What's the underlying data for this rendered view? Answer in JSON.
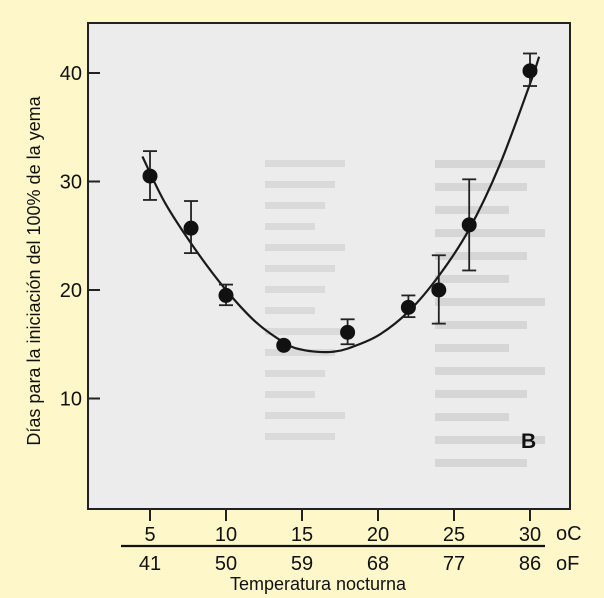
{
  "chart_data": {
    "type": "scatter",
    "title": "",
    "panel_label": "B",
    "ylabel": "Días para la iniciación del 100% de la yema",
    "xlabel": "Temperatura nocturna",
    "x_unit_c": "oC",
    "x_unit_f": "oF",
    "x_ticks_c": [
      5,
      10,
      15,
      20,
      25,
      30
    ],
    "x_ticks_f": [
      "41",
      "50",
      "59",
      "68",
      "77",
      "86"
    ],
    "xlim": [
      2,
      32
    ],
    "y_ticks": [
      10,
      20,
      30,
      40
    ],
    "ylim": [
      0,
      45
    ],
    "grid": false,
    "legend": "none",
    "series": [
      {
        "x": [
          5,
          7.7,
          10,
          13.8,
          18,
          22,
          24,
          26,
          30
        ],
        "y": [
          30.5,
          25.7,
          19.5,
          14.9,
          16.1,
          18.4,
          20.0,
          26.0,
          40.2
        ],
        "err_low": [
          28.3,
          23.4,
          18.6,
          14.9,
          15.0,
          17.5,
          16.9,
          21.8,
          38.8
        ],
        "err_high": [
          32.8,
          28.2,
          20.5,
          14.9,
          17.3,
          19.5,
          23.2,
          30.2,
          41.8
        ]
      }
    ],
    "fit_curve": {
      "x": [
        4.5,
        6,
        8,
        10,
        12,
        14,
        15,
        16,
        17,
        18,
        20,
        22,
        24,
        26,
        28,
        30,
        30.6
      ],
      "y": [
        32.3,
        28.0,
        23.7,
        20.0,
        17.0,
        15.0,
        14.5,
        14.3,
        14.3,
        14.6,
        15.8,
        18.0,
        21.3,
        25.6,
        31.5,
        39.0,
        41.5
      ]
    }
  }
}
